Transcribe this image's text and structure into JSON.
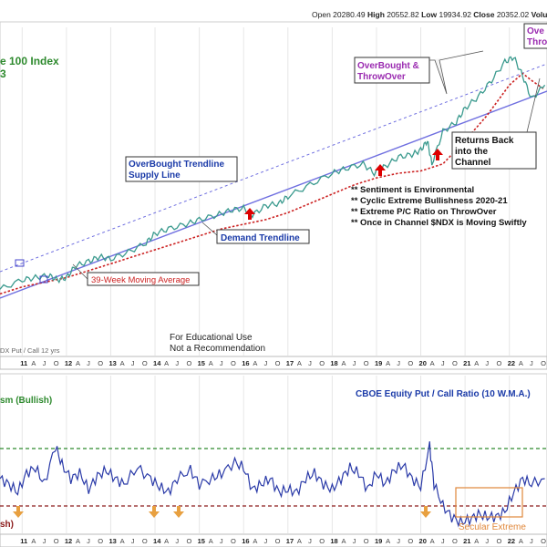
{
  "header": {
    "open_label": "Open",
    "open_value": "20280.49",
    "high_label": "High",
    "high_value": "20552.82",
    "low_label": "Low",
    "low_value": "19934.92",
    "close_label": "Close",
    "close_value": "20352.02",
    "volume_label": "Volu"
  },
  "upper_panel": {
    "title_line1": "e 100 Index",
    "title_line2": "3",
    "annotations": {
      "overbought_throwover": [
        "OverBought &",
        "ThrowOver"
      ],
      "overbought_right": [
        "Ove",
        "Thro"
      ],
      "trendline_supply": [
        "OverBought Trendline",
        "Supply Line"
      ],
      "demand_trendline": "Demand Trendline",
      "moving_average": "39-Week Moving Average",
      "returns_back": [
        "Returns Back",
        "into the",
        "Channel"
      ],
      "notes": [
        "** Sentiment is Environmental",
        "** Cyclic Extreme Bullishness 2020-21",
        "** Extreme P/C Ratio on ThrowOver",
        "** Once in Channel $NDX is Moving Swiftly"
      ],
      "educational": [
        "For Educational Use",
        "Not a Recommendation"
      ],
      "legend_fragment": "DX Put / Call 12 yrs"
    }
  },
  "lower_panel": {
    "title": "CBOE Equity Put / Call Ratio (10 W.M.A.)",
    "bullish_label": "sm (Bullish)",
    "bearish_label": "sh)",
    "secular_label": "Secular Extreme"
  },
  "colors": {
    "price": "#3a9a8e",
    "moving_average": "#cc2222",
    "trend_line": "#6f6fe0",
    "ratio_line": "#2a3aa8",
    "upper_ref": "#2e8a2e",
    "lower_ref": "#8b1a1a",
    "arrow_up": "#dd0000",
    "arrow_down": "#e8a040",
    "title_green": "#2e8a2e",
    "annotation_purple": "#9a2ab0",
    "annotation_blue": "#1a3aa8",
    "ma_label": "#cc2222",
    "secular": "#e0873a"
  },
  "chart_data": [
    {
      "type": "line",
      "title": "e 100 Index",
      "x_axis_years": [
        "11",
        "12",
        "13",
        "14",
        "15",
        "16",
        "17",
        "18",
        "19",
        "20",
        "21",
        "22"
      ],
      "x_axis_months": [
        "A",
        "J",
        "O"
      ],
      "series": [
        {
          "name": "Price",
          "x": [
            2010.5,
            2011.0,
            2011.3,
            2011.6,
            2011.8,
            2012.0,
            2012.2,
            2012.5,
            2012.75,
            2013.0,
            2013.4,
            2013.8,
            2014.0,
            2014.3,
            2014.7,
            2015.0,
            2015.4,
            2015.7,
            2016.0,
            2016.2,
            2016.5,
            2016.8,
            2017.0,
            2017.5,
            2018.0,
            2018.3,
            2018.7,
            2018.95,
            2019.2,
            2019.5,
            2019.8,
            2020.0,
            2020.15,
            2020.25,
            2020.5,
            2020.8,
            2021.0,
            2021.3,
            2021.6,
            2021.9,
            2022.1,
            2022.3,
            2022.5,
            2022.8
          ],
          "y": [
            20,
            24,
            25,
            26,
            24,
            25,
            30,
            32,
            34,
            33,
            36,
            40,
            44,
            46,
            48,
            50,
            52,
            54,
            55,
            52,
            56,
            57,
            60,
            65,
            70,
            72,
            74,
            70,
            73,
            77,
            78,
            80,
            84,
            74,
            88,
            92,
            98,
            103,
            110,
            118,
            120,
            112,
            102,
            108
          ]
        },
        {
          "name": "39-Week Moving Average",
          "x": [
            2010.5,
            2011.0,
            2011.5,
            2012.0,
            2012.5,
            2013.0,
            2013.5,
            2014.0,
            2014.5,
            2015.0,
            2015.5,
            2016.0,
            2016.5,
            2017.0,
            2017.5,
            2018.0,
            2018.5,
            2019.0,
            2019.5,
            2020.0,
            2020.5,
            2021.0,
            2021.5,
            2022.0,
            2022.3,
            2022.5,
            2022.8
          ],
          "y": [
            18,
            21,
            23,
            25,
            28,
            31,
            34,
            37,
            40,
            43,
            46,
            48,
            50,
            53,
            57,
            61,
            65,
            68,
            70,
            71,
            74,
            84,
            95,
            108,
            113,
            110,
            106
          ]
        }
      ]
    },
    {
      "type": "line",
      "title": "CBOE Equity Put / Call Ratio (10 W.M.A.)",
      "series": [
        {
          "name": "CBOE Equity Put / Call Ratio (10 W.M.A.)",
          "x": [
            2010.5,
            2010.7,
            2010.9,
            2011.1,
            2011.3,
            2011.5,
            2011.75,
            2011.9,
            2012.1,
            2012.3,
            2012.5,
            2012.7,
            2012.9,
            2013.1,
            2013.3,
            2013.6,
            2013.9,
            2014.1,
            2014.3,
            2014.5,
            2014.8,
            2015.0,
            2015.3,
            2015.5,
            2015.8,
            2016.0,
            2016.2,
            2016.4,
            2016.6,
            2016.8,
            2017.0,
            2017.2,
            2017.4,
            2017.6,
            2017.8,
            2018.0,
            2018.2,
            2018.4,
            2018.6,
            2018.8,
            2019.0,
            2019.2,
            2019.4,
            2019.6,
            2019.8,
            2020.0,
            2020.2,
            2020.3,
            2020.5,
            2020.7,
            2020.9,
            2021.1,
            2021.3,
            2021.5,
            2021.7,
            2021.9,
            2022.1,
            2022.3,
            2022.5,
            2022.8
          ],
          "y": [
            0.6,
            0.58,
            0.55,
            0.62,
            0.64,
            0.58,
            0.72,
            0.65,
            0.6,
            0.62,
            0.56,
            0.61,
            0.63,
            0.6,
            0.58,
            0.64,
            0.6,
            0.57,
            0.55,
            0.6,
            0.63,
            0.58,
            0.6,
            0.62,
            0.66,
            0.64,
            0.56,
            0.58,
            0.6,
            0.55,
            0.56,
            0.55,
            0.6,
            0.62,
            0.58,
            0.56,
            0.6,
            0.64,
            0.62,
            0.56,
            0.62,
            0.58,
            0.63,
            0.65,
            0.6,
            0.57,
            0.72,
            0.58,
            0.5,
            0.46,
            0.44,
            0.45,
            0.47,
            0.46,
            0.46,
            0.48,
            0.55,
            0.6,
            0.58,
            0.6
          ]
        }
      ],
      "reference_lines": {
        "bullish": 0.71,
        "bearish": 0.5
      }
    }
  ]
}
